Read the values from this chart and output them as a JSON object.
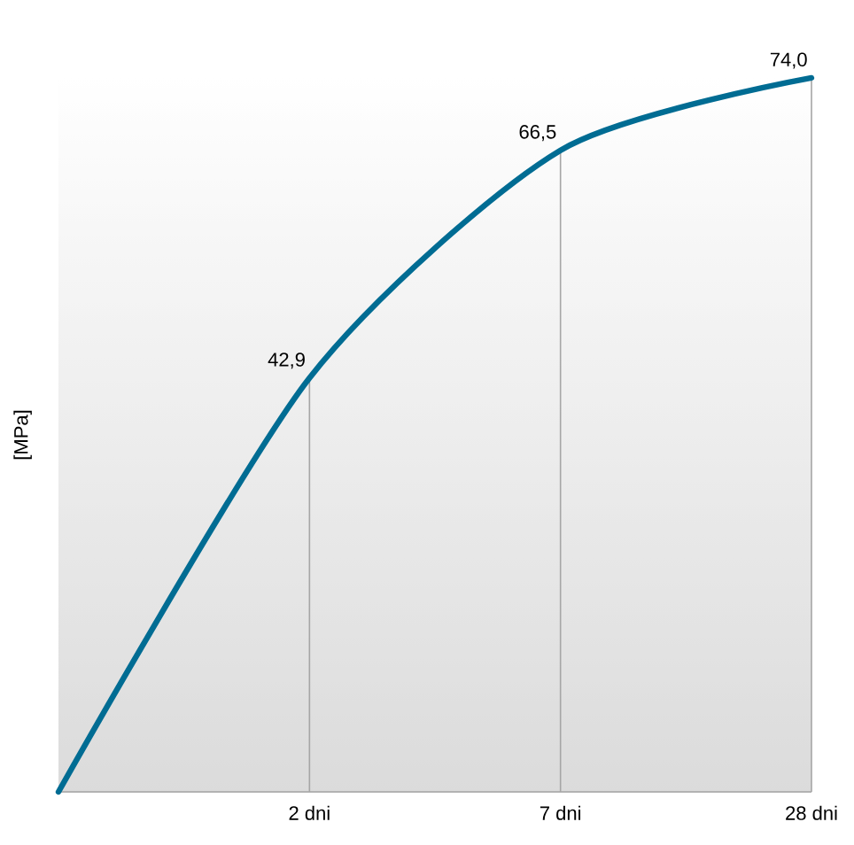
{
  "chart_data": {
    "type": "line",
    "ylabel": "[MPa]",
    "categories": [
      null,
      "2 dni",
      "7 dni",
      "28 dni"
    ],
    "series": [
      {
        "color": "#006c93",
        "values": [
          0,
          42.9,
          66.5,
          74.0
        ],
        "value_labels": [
          null,
          "42,9",
          "66,5",
          "74,0"
        ]
      }
    ],
    "ylim": [
      0,
      74
    ],
    "tick_labels": "x",
    "grid": "x"
  }
}
